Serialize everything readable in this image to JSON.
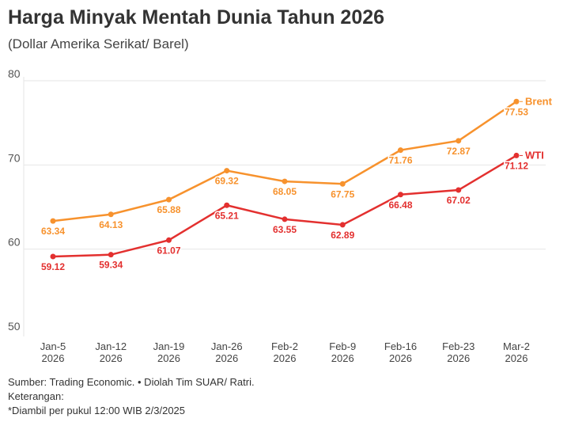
{
  "chart_data": {
    "type": "line",
    "title": "Harga Minyak Mentah Dunia Tahun 2026",
    "subtitle": "(Dollar Amerika Serikat/ Barel)",
    "categories": [
      "Jan-5 2026",
      "Jan-12 2026",
      "Jan-19 2026",
      "Jan-26 2026",
      "Feb-2 2026",
      "Feb-9 2026",
      "Feb-16 2026",
      "Feb-23 2026",
      "Mar-2 2026"
    ],
    "ylim": [
      50,
      80
    ],
    "yticks": [
      50,
      60,
      70,
      80
    ],
    "grid": true,
    "legend": "end-of-line labels",
    "series": [
      {
        "name": "Brent",
        "color": "#f7922d",
        "values": [
          63.34,
          64.13,
          65.88,
          69.32,
          68.05,
          67.75,
          71.76,
          72.87,
          77.53
        ]
      },
      {
        "name": "WTI",
        "color": "#e3302f",
        "values": [
          59.12,
          59.34,
          61.07,
          65.21,
          63.55,
          62.89,
          66.48,
          67.02,
          71.12
        ]
      }
    ]
  },
  "footer": {
    "source": "Sumber: Trading Economic. • Diolah Tim SUAR/ Ratri.",
    "note_label": "Keterangan:",
    "note": "*Diambil per pukul 12:00 WIB 2/3/2025"
  }
}
